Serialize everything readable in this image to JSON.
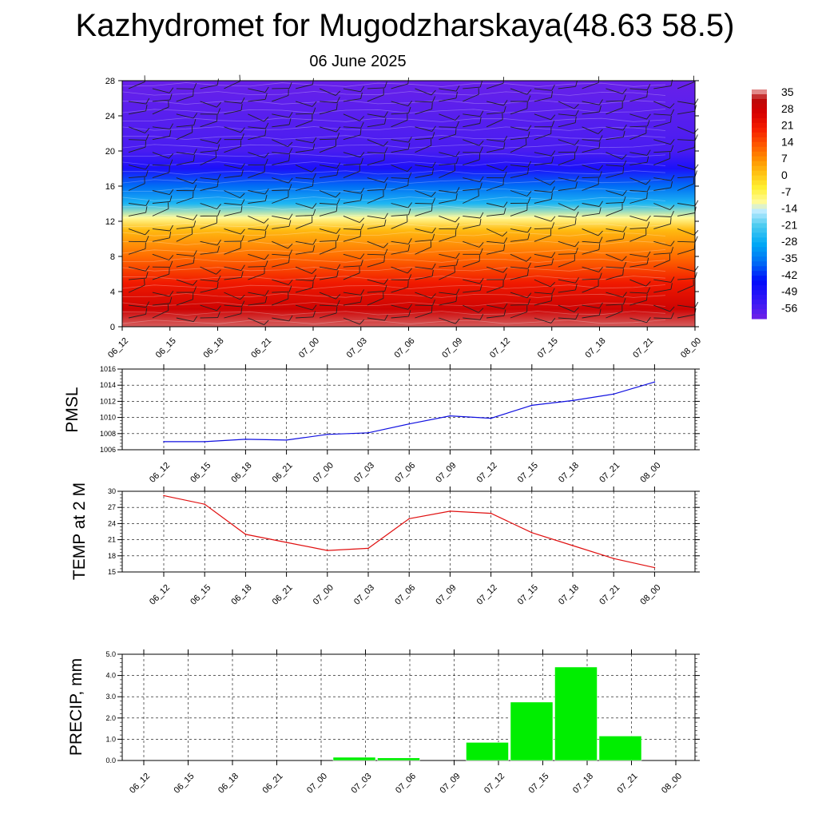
{
  "page": {
    "title": "Kazhydromet for Mugodzharskaya(48.63 58.5)",
    "subtitle": "06 June 2025"
  },
  "colors": {
    "pmsl_line": "#1010e0",
    "temp_line": "#e01010",
    "precip_bar": "#00ee00"
  },
  "chart_data": [
    {
      "type": "heatmap",
      "x_ticks": [
        "06_12",
        "06_15",
        "06_18",
        "06_21",
        "07_00",
        "07_03",
        "07_06",
        "07_09",
        "07_12",
        "07_15",
        "07_18",
        "07_21",
        "08_00"
      ],
      "y_ticks": [
        0,
        4,
        8,
        12,
        16,
        20,
        24,
        28
      ],
      "ylim": [
        0,
        28
      ],
      "colorbar_ticks": [
        35,
        28,
        21,
        14,
        7,
        0,
        -7,
        -14,
        -21,
        -28,
        -35,
        -42,
        -49,
        -56
      ],
      "color_range": [
        -60,
        38
      ],
      "temperature_by_height": [
        {
          "y": 0,
          "t": 36
        },
        {
          "y": 2,
          "t": 30
        },
        {
          "y": 5,
          "t": 22
        },
        {
          "y": 8,
          "t": 12
        },
        {
          "y": 11,
          "t": 3
        },
        {
          "y": 12.4,
          "t": -10
        },
        {
          "y": 14,
          "t": -25
        },
        {
          "y": 16,
          "t": -36
        },
        {
          "y": 18,
          "t": -48
        },
        {
          "y": 20,
          "t": -55
        },
        {
          "y": 24,
          "t": -57
        },
        {
          "y": 28,
          "t": -59
        }
      ],
      "wind_barbs": true
    },
    {
      "type": "line",
      "ylabel": "PMSL",
      "x": [
        "06_12",
        "06_15",
        "06_18",
        "06_21",
        "07_00",
        "07_03",
        "07_06",
        "07_09",
        "07_12",
        "07_15",
        "07_18",
        "07_21",
        "08_00"
      ],
      "values": [
        1007.0,
        1007.0,
        1007.3,
        1007.2,
        1007.9,
        1008.1,
        1009.2,
        1010.2,
        1009.9,
        1011.5,
        1012.1,
        1012.9,
        1014.4
      ],
      "ylim": [
        1006,
        1016
      ],
      "y_ticks": [
        1006,
        1008,
        1010,
        1012,
        1014,
        1016
      ],
      "grid": true
    },
    {
      "type": "line",
      "ylabel": "TEMP at 2 M",
      "x": [
        "06_12",
        "06_15",
        "06_18",
        "06_21",
        "07_00",
        "07_03",
        "07_06",
        "07_09",
        "07_12",
        "07_15",
        "07_18",
        "07_21",
        "08_00"
      ],
      "values": [
        29.2,
        27.6,
        22.0,
        20.5,
        19.0,
        19.4,
        24.9,
        26.3,
        25.9,
        22.3,
        19.9,
        17.5,
        15.8
      ],
      "ylim": [
        15,
        30
      ],
      "y_ticks": [
        15,
        18,
        21,
        24,
        27,
        30
      ],
      "grid": true
    },
    {
      "type": "bar",
      "ylabel": "PRECIP, mm",
      "categories": [
        "06_12",
        "06_15",
        "06_18",
        "06_21",
        "07_00",
        "07_03",
        "07_06",
        "07_09",
        "07_12",
        "07_15",
        "07_18",
        "07_21",
        "08_00"
      ],
      "values": [
        0,
        0,
        0,
        0,
        0.15,
        0.12,
        0,
        0.85,
        2.75,
        4.4,
        1.15,
        0,
        0
      ],
      "ylim": [
        0,
        5
      ],
      "y_ticks": [
        "0.0",
        "1.0",
        "2.0",
        "3.0",
        "4.0",
        "5.0"
      ],
      "grid": true
    }
  ]
}
